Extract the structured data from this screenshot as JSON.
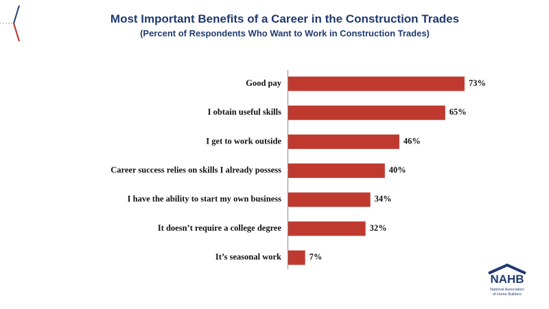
{
  "chart_data": {
    "type": "hbar",
    "title": "Most Important Benefits of a Career in the Construction Trades",
    "subtitle": "(Percent of Respondents Who Want to Work in Construction Trades)",
    "categories": [
      "Good pay",
      "I obtain useful skills",
      "I get to work outside",
      "Career success relies on skills I already possess",
      "I have the ability to start my own business",
      "It doesn’t require a college degree",
      "It’s seasonal work"
    ],
    "values": [
      73,
      65,
      46,
      40,
      34,
      32,
      7
    ],
    "value_labels": [
      "73%",
      "65%",
      "46%",
      "40%",
      "34%",
      "32%",
      "7%"
    ],
    "color": "#c0392f"
  },
  "logo": {
    "name": "NAHB",
    "lines": [
      "National Association",
      "of Home Builders"
    ]
  }
}
